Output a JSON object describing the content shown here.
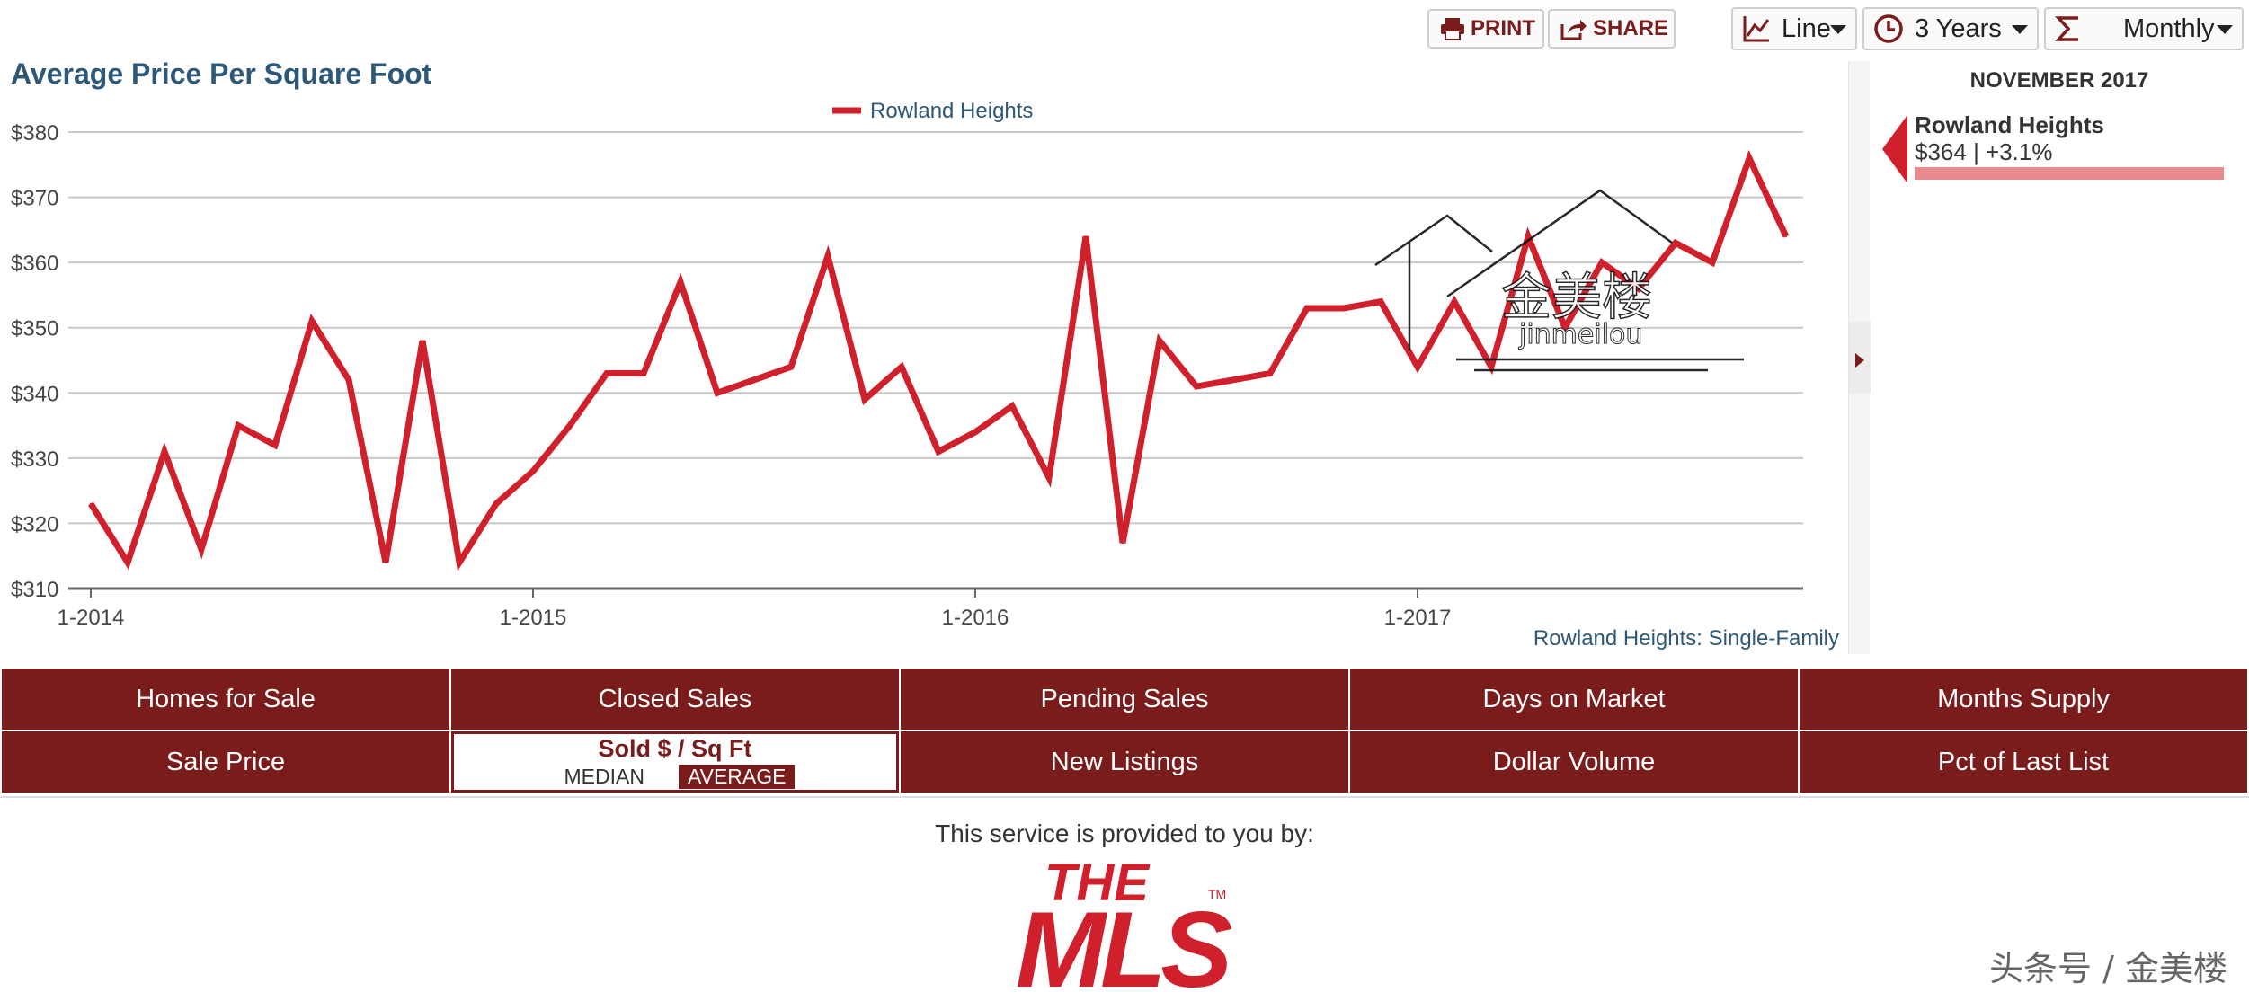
{
  "toolbar": {
    "print_label": "PRINT",
    "share_label": "SHARE",
    "chart_type": "Line",
    "range": "3 Years",
    "interval": "Monthly"
  },
  "chart_data": {
    "type": "line",
    "title": "Average Price Per Square Foot",
    "legend": [
      "Rowland Heights"
    ],
    "legend_position": "top-center",
    "series": [
      {
        "name": "Rowland Heights",
        "color": "#d0202c",
        "values": [
          323,
          314,
          331,
          316,
          335,
          332,
          351,
          342,
          314,
          348,
          314,
          323,
          328,
          335,
          343,
          343,
          357,
          340,
          342,
          344,
          361,
          339,
          344,
          331,
          334,
          338,
          327,
          364,
          317,
          348,
          341,
          342,
          343,
          353,
          353,
          354,
          344,
          354,
          344,
          364,
          350,
          360,
          356,
          363,
          360,
          376,
          364
        ]
      }
    ],
    "x_tick_labels": [
      "1-2014",
      "1-2015",
      "1-2016",
      "1-2017"
    ],
    "y_tick_labels": [
      "$310",
      "$320",
      "$330",
      "$340",
      "$350",
      "$360",
      "$370",
      "$380"
    ],
    "ylim": [
      310,
      380
    ],
    "grid": true,
    "source_note": "Rowland Heights: Single-Family"
  },
  "sidepanel": {
    "month": "NOVEMBER 2017",
    "name": "Rowland Heights",
    "value_change": "$364 | +3.1%",
    "bar_fraction": 1.0
  },
  "tabs": {
    "row1": [
      "Homes for Sale",
      "Closed Sales",
      "Pending Sales",
      "Days on Market",
      "Months Supply"
    ],
    "row2": [
      "Sale Price",
      "",
      "New Listings",
      "Dollar Volume",
      "Pct of Last List"
    ],
    "active_main": "Sold $ / Sq Ft",
    "active_sub1": "MEDIAN",
    "active_sub2": "AVERAGE"
  },
  "provided_text": "This service is provided to you by:",
  "logo_text": "THE MLS",
  "corner_watermark": "头条号 / 金美楼",
  "chart_watermark": "金美楼",
  "chart_watermark_sub": "jinmeilou",
  "colors": {
    "brand": "#7a1c1c",
    "series": "#d0202c",
    "title": "#2d5878"
  }
}
